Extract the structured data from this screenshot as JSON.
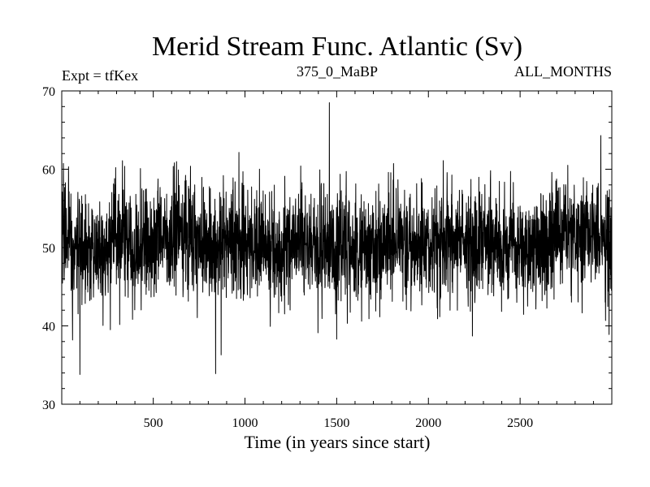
{
  "chart_data": {
    "type": "line",
    "title": "Merid Stream Func. Atlantic (Sv)",
    "annotations": {
      "left": "Expt = tfKex",
      "center": "375_0_MaBP",
      "right": "ALL_MONTHS"
    },
    "xlabel": "Time (in years since start)",
    "ylabel": "",
    "xlim": [
      1,
      3000
    ],
    "ylim": [
      30,
      70
    ],
    "x_ticks": [
      500,
      1000,
      1500,
      2000,
      2500
    ],
    "y_ticks": [
      30,
      40,
      50,
      60,
      70
    ],
    "grid": false,
    "series": [
      {
        "color": "#000000",
        "n_points": 3000,
        "x_start": 1,
        "x_step": 1,
        "mean": 51,
        "std": 3.6,
        "notable_points": [
          {
            "x": 60,
            "y": 38.2
          },
          {
            "x": 100,
            "y": 33.8
          },
          {
            "x": 840,
            "y": 33.9
          },
          {
            "x": 870,
            "y": 36.3
          },
          {
            "x": 1460,
            "y": 68.5
          },
          {
            "x": 1500,
            "y": 38.3
          },
          {
            "x": 2240,
            "y": 38.7
          },
          {
            "x": 2940,
            "y": 64.3
          },
          {
            "x": 2985,
            "y": 38.9
          }
        ]
      }
    ]
  }
}
